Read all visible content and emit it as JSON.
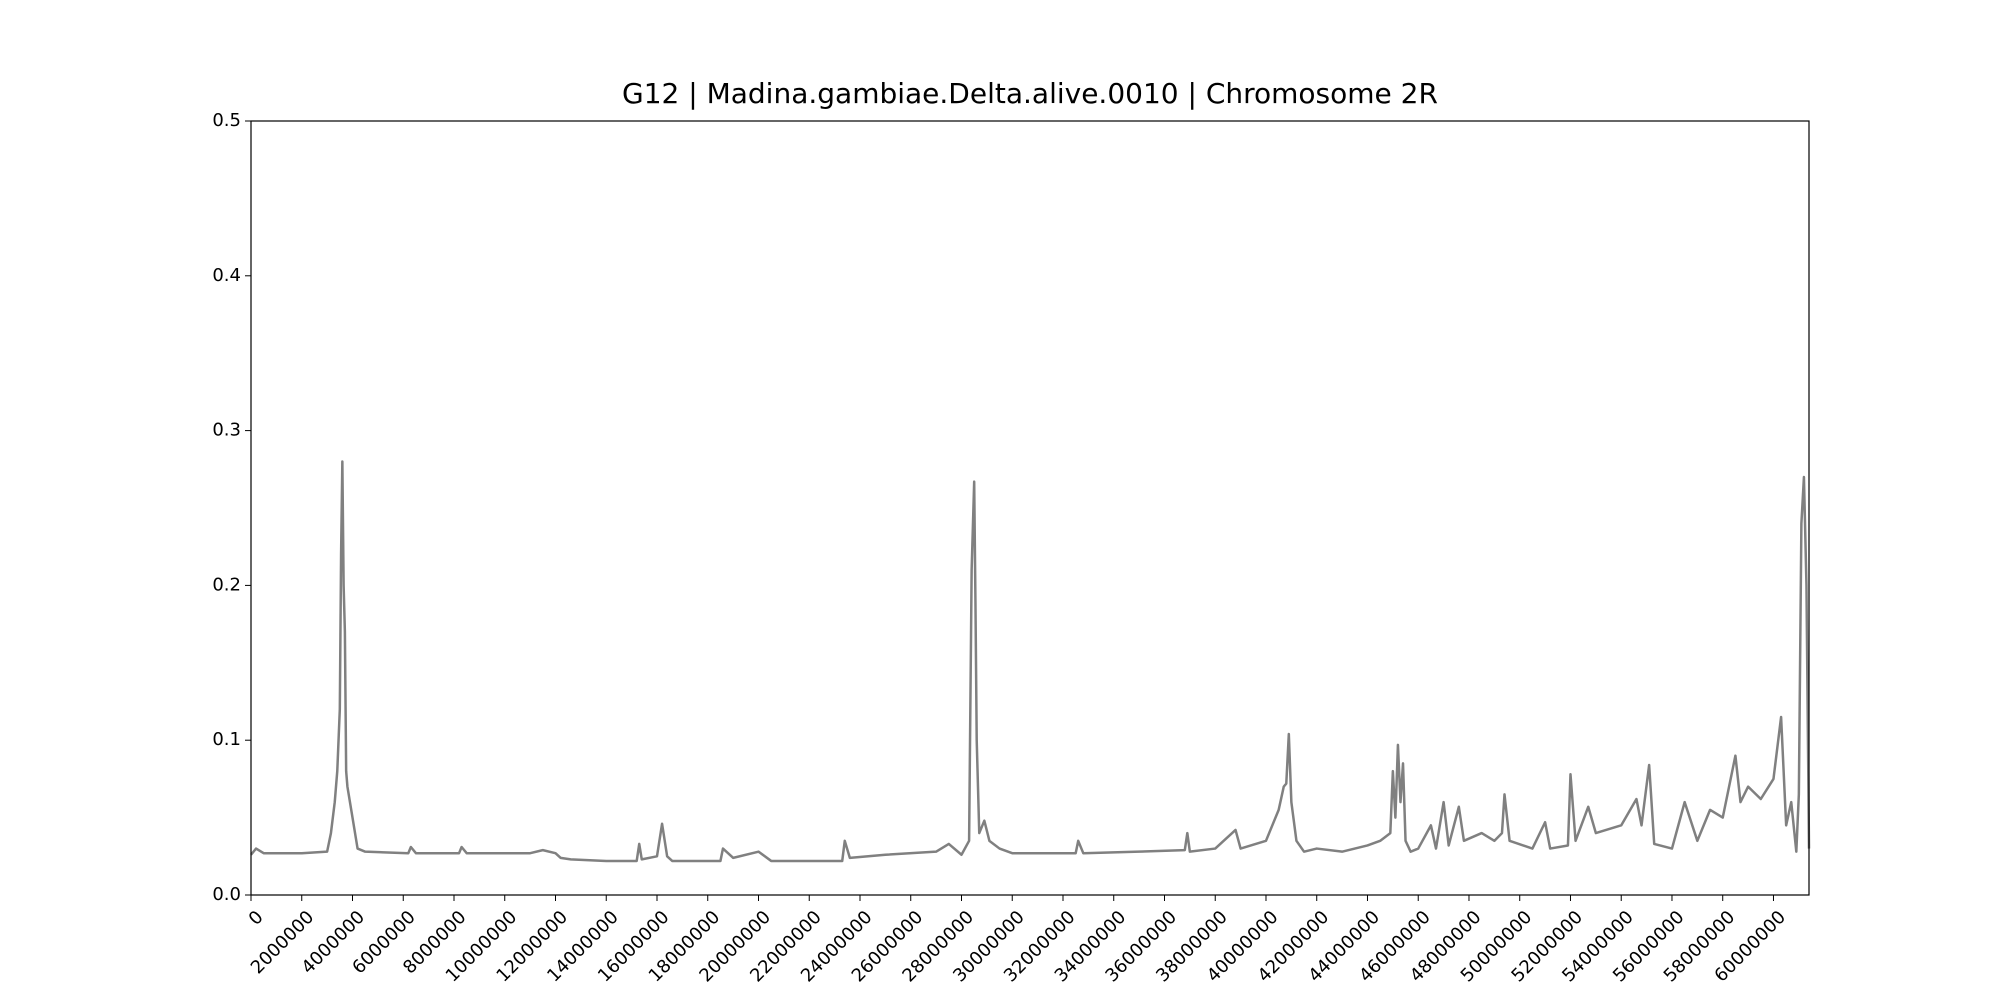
{
  "chart_data": {
    "type": "line",
    "title": "G12 | Madina.gambiae.Delta.alive.0010 | Chromosome 2R",
    "x": [
      0,
      200000,
      500000,
      2000000,
      3000000,
      3150000,
      3300000,
      3400000,
      3500000,
      3550000,
      3600000,
      3650000,
      3700000,
      3750000,
      3800000,
      4000000,
      4200000,
      4500000,
      6200000,
      6300000,
      6500000,
      8200000,
      8300000,
      8500000,
      11000000,
      11500000,
      12000000,
      12200000,
      12600000,
      14000000,
      15200000,
      15300000,
      15400000,
      16000000,
      16200000,
      16400000,
      16600000,
      18500000,
      18600000,
      19000000,
      20000000,
      20500000,
      23300000,
      23400000,
      23600000,
      25000000,
      27000000,
      27500000,
      28000000,
      28300000,
      28400000,
      28500000,
      28550000,
      28600000,
      28700000,
      28900000,
      29100000,
      29500000,
      30000000,
      32500000,
      32600000,
      32800000,
      35000000,
      36800000,
      36900000,
      37000000,
      38000000,
      38800000,
      39000000,
      40000000,
      40500000,
      40700000,
      40800000,
      40900000,
      41000000,
      41200000,
      41500000,
      42000000,
      43000000,
      44000000,
      44500000,
      44900000,
      45000000,
      45100000,
      45200000,
      45300000,
      45400000,
      45500000,
      45700000,
      46000000,
      46500000,
      46700000,
      47000000,
      47200000,
      47600000,
      47800000,
      48500000,
      49000000,
      49300000,
      49400000,
      49600000,
      50500000,
      51000000,
      51200000,
      51900000,
      52000000,
      52200000,
      52700000,
      53000000,
      54000000,
      54600000,
      54800000,
      55100000,
      55300000,
      56000000,
      56500000,
      57000000,
      57500000,
      58000000,
      58500000,
      58700000,
      59000000,
      59500000,
      60000000,
      60300000,
      60500000,
      60700000,
      60900000,
      61000000,
      61100000,
      61200000,
      61300000,
      61400000
    ],
    "series": [
      {
        "color": "#808080",
        "values": [
          0.026,
          0.03,
          0.027,
          0.027,
          0.028,
          0.04,
          0.06,
          0.08,
          0.12,
          0.22,
          0.28,
          0.2,
          0.17,
          0.08,
          0.07,
          0.05,
          0.03,
          0.028,
          0.027,
          0.031,
          0.027,
          0.027,
          0.031,
          0.027,
          0.027,
          0.029,
          0.027,
          0.024,
          0.023,
          0.022,
          0.022,
          0.033,
          0.023,
          0.025,
          0.046,
          0.025,
          0.022,
          0.022,
          0.03,
          0.024,
          0.028,
          0.022,
          0.022,
          0.035,
          0.024,
          0.026,
          0.028,
          0.033,
          0.026,
          0.035,
          0.21,
          0.267,
          0.19,
          0.1,
          0.04,
          0.048,
          0.035,
          0.03,
          0.027,
          0.027,
          0.035,
          0.027,
          0.028,
          0.029,
          0.04,
          0.028,
          0.03,
          0.042,
          0.03,
          0.035,
          0.055,
          0.07,
          0.072,
          0.104,
          0.06,
          0.035,
          0.028,
          0.03,
          0.028,
          0.032,
          0.035,
          0.04,
          0.08,
          0.05,
          0.097,
          0.06,
          0.085,
          0.035,
          0.028,
          0.03,
          0.045,
          0.03,
          0.06,
          0.032,
          0.057,
          0.035,
          0.04,
          0.035,
          0.04,
          0.065,
          0.035,
          0.03,
          0.047,
          0.03,
          0.032,
          0.078,
          0.035,
          0.057,
          0.04,
          0.045,
          0.062,
          0.045,
          0.084,
          0.033,
          0.03,
          0.06,
          0.035,
          0.055,
          0.05,
          0.09,
          0.06,
          0.07,
          0.062,
          0.075,
          0.115,
          0.045,
          0.06,
          0.028,
          0.065,
          0.24,
          0.27,
          0.2,
          0.03
        ]
      }
    ],
    "xlim": [
      0,
      61400000
    ],
    "xticks": [
      0,
      2000000,
      4000000,
      6000000,
      8000000,
      10000000,
      12000000,
      14000000,
      16000000,
      18000000,
      20000000,
      22000000,
      24000000,
      26000000,
      28000000,
      30000000,
      32000000,
      34000000,
      36000000,
      38000000,
      40000000,
      42000000,
      44000000,
      46000000,
      48000000,
      50000000,
      52000000,
      54000000,
      56000000,
      58000000,
      60000000
    ],
    "ylim": [
      0,
      0.5
    ],
    "yticks": [
      0.0,
      0.1,
      0.2,
      0.3,
      0.4,
      0.5
    ]
  }
}
